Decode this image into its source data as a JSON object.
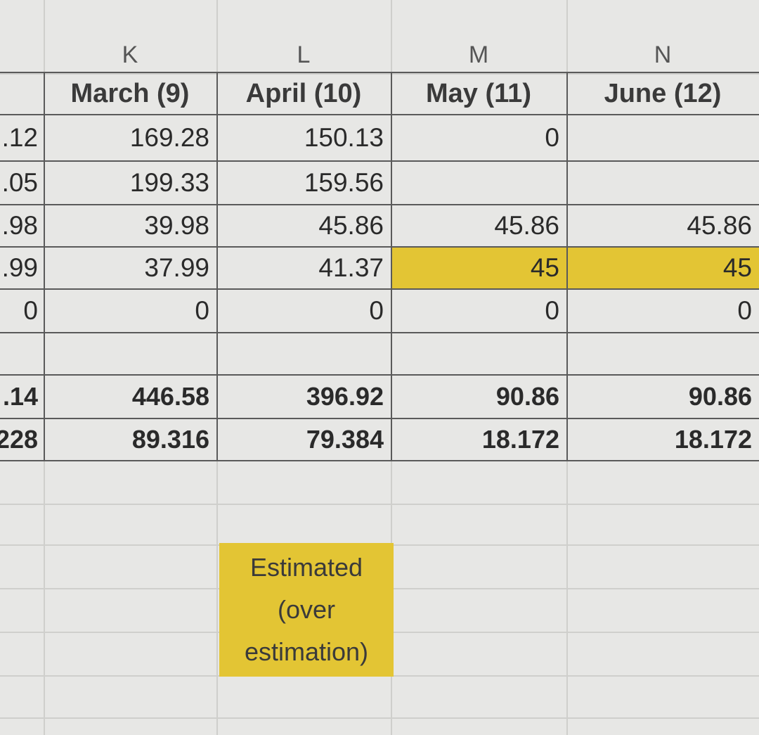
{
  "columns": [
    "K",
    "L",
    "M",
    "N"
  ],
  "headers": [
    "March (9)",
    "April (10)",
    "May (11)",
    "June (12)"
  ],
  "left_partial": [
    ".12",
    ".05",
    ".98",
    ".99",
    "0",
    "",
    ".14",
    "228"
  ],
  "rows": [
    [
      "169.28",
      "150.13",
      "0",
      ""
    ],
    [
      "199.33",
      "159.56",
      "",
      ""
    ],
    [
      "39.98",
      "45.86",
      "45.86",
      "45.86"
    ],
    [
      "37.99",
      "41.37",
      "45",
      "45"
    ],
    [
      "0",
      "0",
      "0",
      "0"
    ],
    [
      "",
      "",
      "",
      ""
    ],
    [
      "446.58",
      "396.92",
      "90.86",
      "90.86"
    ],
    [
      "89.316",
      "79.384",
      "18.172",
      "18.172"
    ]
  ],
  "note": {
    "line1": "Estimated",
    "line2": "(over",
    "line3": "estimation)"
  },
  "colors": {
    "highlight": "#e3c534",
    "background": "#e7e7e5"
  }
}
